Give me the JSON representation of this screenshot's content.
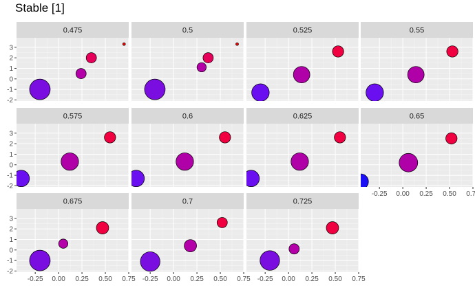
{
  "chart_data": {
    "type": "scatter",
    "title": "Stable [1]",
    "xlabel": "",
    "ylabel": "",
    "xlim": [
      -0.45,
      0.75
    ],
    "ylim": [
      -2.1,
      3.9
    ],
    "x_ticks": [
      -0.25,
      0.0,
      0.25,
      0.5,
      0.75
    ],
    "x_tick_labels": [
      "-0.25",
      "0.00",
      "0.25",
      "0.50",
      "0.75"
    ],
    "y_ticks": [
      -2,
      -1,
      0,
      1,
      2,
      3
    ],
    "y_tick_labels": [
      "-2",
      "-1",
      "0",
      "1",
      "2",
      "3"
    ],
    "grid": true,
    "facet_columns": 4,
    "facets": [
      {
        "label": "0.475",
        "points": [
          {
            "x": -0.2,
            "y": -1.0,
            "size": 1.0,
            "color": "#7a0de0"
          },
          {
            "x": 0.24,
            "y": 0.5,
            "size": 0.5,
            "color": "#b300a8"
          },
          {
            "x": 0.35,
            "y": 2.0,
            "size": 0.5,
            "color": "#e6005a"
          },
          {
            "x": 0.7,
            "y": 3.3,
            "size": 0.13,
            "color": "#ff0000"
          }
        ]
      },
      {
        "label": "0.5",
        "points": [
          {
            "x": -0.2,
            "y": -1.0,
            "size": 1.0,
            "color": "#7a0de0"
          },
          {
            "x": 0.3,
            "y": 1.1,
            "size": 0.45,
            "color": "#b300a8"
          },
          {
            "x": 0.37,
            "y": 2.0,
            "size": 0.5,
            "color": "#e6005a"
          },
          {
            "x": 0.68,
            "y": 3.3,
            "size": 0.13,
            "color": "#ff0000"
          }
        ]
      },
      {
        "label": "0.525",
        "points": [
          {
            "x": -0.3,
            "y": -1.3,
            "size": 0.85,
            "color": "#6a0ff0"
          },
          {
            "x": 0.14,
            "y": 0.4,
            "size": 0.8,
            "color": "#b000a8"
          },
          {
            "x": 0.53,
            "y": 2.6,
            "size": 0.55,
            "color": "#f00040"
          }
        ]
      },
      {
        "label": "0.55",
        "points": [
          {
            "x": -0.3,
            "y": -1.3,
            "size": 0.85,
            "color": "#6a0ff0"
          },
          {
            "x": 0.14,
            "y": 0.4,
            "size": 0.8,
            "color": "#b000a8"
          },
          {
            "x": 0.53,
            "y": 2.6,
            "size": 0.55,
            "color": "#f00040"
          }
        ]
      },
      {
        "label": "0.575",
        "points": [
          {
            "x": -0.4,
            "y": -1.3,
            "size": 0.8,
            "color": "#6a0ff0"
          },
          {
            "x": 0.12,
            "y": 0.3,
            "size": 0.85,
            "color": "#b000a8"
          },
          {
            "x": 0.55,
            "y": 2.6,
            "size": 0.55,
            "color": "#f00040"
          }
        ]
      },
      {
        "label": "0.6",
        "points": [
          {
            "x": -0.4,
            "y": -1.3,
            "size": 0.8,
            "color": "#6a0ff0"
          },
          {
            "x": 0.12,
            "y": 0.3,
            "size": 0.85,
            "color": "#b000a8"
          },
          {
            "x": 0.55,
            "y": 2.6,
            "size": 0.55,
            "color": "#f00040"
          }
        ]
      },
      {
        "label": "0.625",
        "points": [
          {
            "x": -0.4,
            "y": -1.3,
            "size": 0.8,
            "color": "#6a0ff0"
          },
          {
            "x": 0.12,
            "y": 0.3,
            "size": 0.85,
            "color": "#b000a8"
          },
          {
            "x": 0.55,
            "y": 2.6,
            "size": 0.55,
            "color": "#f00040"
          }
        ]
      },
      {
        "label": "0.65",
        "points": [
          {
            "x": -0.45,
            "y": -1.6,
            "size": 0.75,
            "color": "#1a0ff5"
          },
          {
            "x": 0.06,
            "y": 0.2,
            "size": 0.9,
            "color": "#b000a8"
          },
          {
            "x": 0.52,
            "y": 2.5,
            "size": 0.55,
            "color": "#f00040"
          }
        ]
      },
      {
        "label": "0.675",
        "points": [
          {
            "x": -0.2,
            "y": -1.0,
            "size": 1.0,
            "color": "#7a0de0"
          },
          {
            "x": 0.05,
            "y": 0.6,
            "size": 0.45,
            "color": "#b300a8"
          },
          {
            "x": 0.47,
            "y": 2.1,
            "size": 0.6,
            "color": "#f00040"
          }
        ]
      },
      {
        "label": "0.7",
        "points": [
          {
            "x": -0.25,
            "y": -1.1,
            "size": 0.95,
            "color": "#7a0de0"
          },
          {
            "x": 0.18,
            "y": 0.4,
            "size": 0.6,
            "color": "#b300a8"
          },
          {
            "x": 0.52,
            "y": 2.6,
            "size": 0.5,
            "color": "#f00040"
          }
        ]
      },
      {
        "label": "0.725",
        "points": [
          {
            "x": -0.2,
            "y": -1.0,
            "size": 0.95,
            "color": "#7a0de0"
          },
          {
            "x": 0.06,
            "y": 0.1,
            "size": 0.5,
            "color": "#b300a8"
          },
          {
            "x": 0.47,
            "y": 2.1,
            "size": 0.6,
            "color": "#f00040"
          }
        ]
      }
    ]
  },
  "colors": {
    "panel_background": "#ebebeb",
    "strip_background": "#d9d9d9",
    "grid_major": "#ffffff",
    "point_outline": "#000000"
  }
}
